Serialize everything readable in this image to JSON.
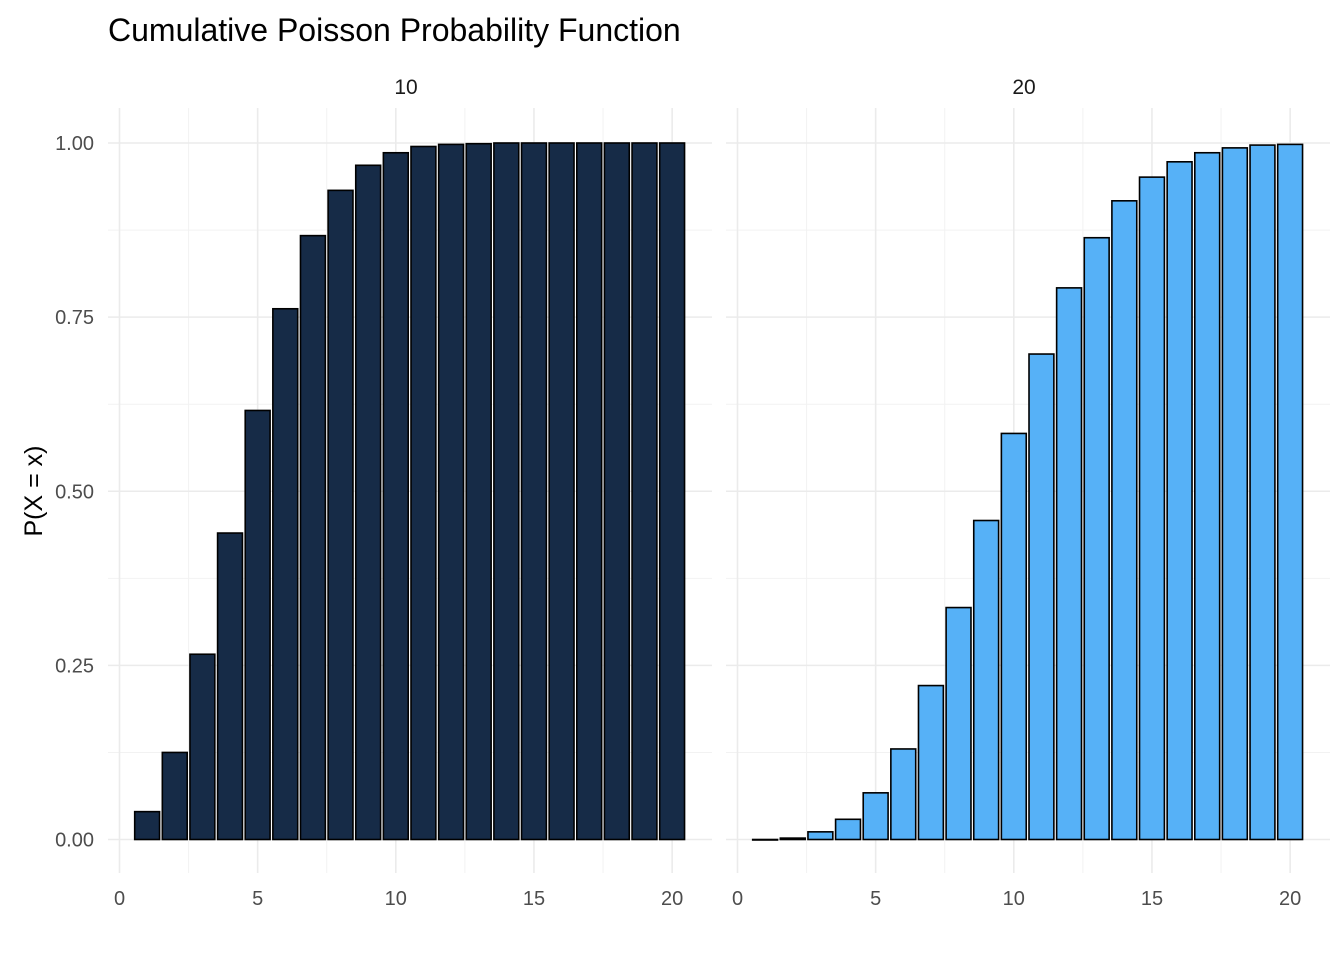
{
  "chart_data": {
    "type": "bar",
    "title": "Cumulative Poisson Probability Function",
    "xlabel": "",
    "ylabel": "P(X = x)",
    "xlim": [
      0,
      21
    ],
    "ylim": [
      0,
      1
    ],
    "x_ticks": [
      0,
      5,
      10,
      15,
      20
    ],
    "y_ticks": [
      0,
      0.25,
      0.5,
      0.75,
      1
    ],
    "y_tick_labels": [
      "0.00",
      "0.25",
      "0.50",
      "0.75",
      "1.00"
    ],
    "x_tick_labels": [
      "0",
      "5",
      "10",
      "15",
      "20"
    ],
    "grid": true,
    "legend": "none",
    "x": [
      1,
      2,
      3,
      4,
      5,
      6,
      7,
      8,
      9,
      10,
      11,
      12,
      13,
      14,
      15,
      16,
      17,
      18,
      19,
      20
    ],
    "panels": [
      {
        "strip": "10",
        "color": "#162b47",
        "values": [
          0.04,
          0.125,
          0.266,
          0.44,
          0.616,
          0.762,
          0.867,
          0.932,
          0.968,
          0.986,
          0.995,
          0.998,
          0.999,
          1.0,
          1.0,
          1.0,
          1.0,
          1.0,
          1.0,
          1.0
        ]
      },
      {
        "strip": "20",
        "color": "#56b1f7",
        "values": [
          0.0,
          0.002,
          0.011,
          0.029,
          0.067,
          0.13,
          0.221,
          0.333,
          0.458,
          0.583,
          0.697,
          0.792,
          0.864,
          0.917,
          0.951,
          0.973,
          0.986,
          0.993,
          0.997,
          0.998
        ]
      }
    ]
  }
}
